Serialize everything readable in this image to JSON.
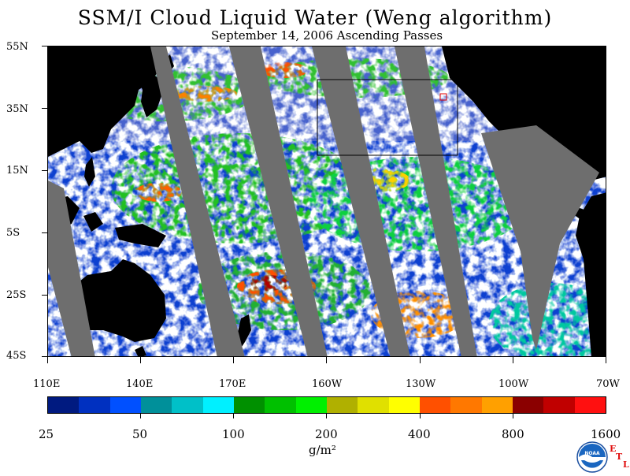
{
  "title": "SSM/I Cloud Liquid Water (Weng algorithm)",
  "subtitle": "September 14, 2006  Ascending Passes",
  "latitude_labels": [
    "55N",
    "35N",
    "15N",
    "5S",
    "25S",
    "45S"
  ],
  "longitude_labels": [
    "110E",
    "140E",
    "170E",
    "160W",
    "130W",
    "100W",
    "70W"
  ],
  "colorbar": {
    "colors": [
      "#001a80",
      "#0030c0",
      "#0050ff",
      "#00909a",
      "#00c0c8",
      "#00f0ff",
      "#009000",
      "#00c000",
      "#00f000",
      "#b0b000",
      "#e0e000",
      "#ffff00",
      "#ff5000",
      "#ff7800",
      "#ffa000",
      "#8b0000",
      "#c00000",
      "#ff1010"
    ],
    "tick_labels": [
      "25",
      "50",
      "100",
      "200",
      "400",
      "800",
      "1600"
    ],
    "units": "g/m²"
  },
  "logo": {
    "text": "NOAA",
    "etl": [
      "E",
      "T",
      "L"
    ]
  }
}
